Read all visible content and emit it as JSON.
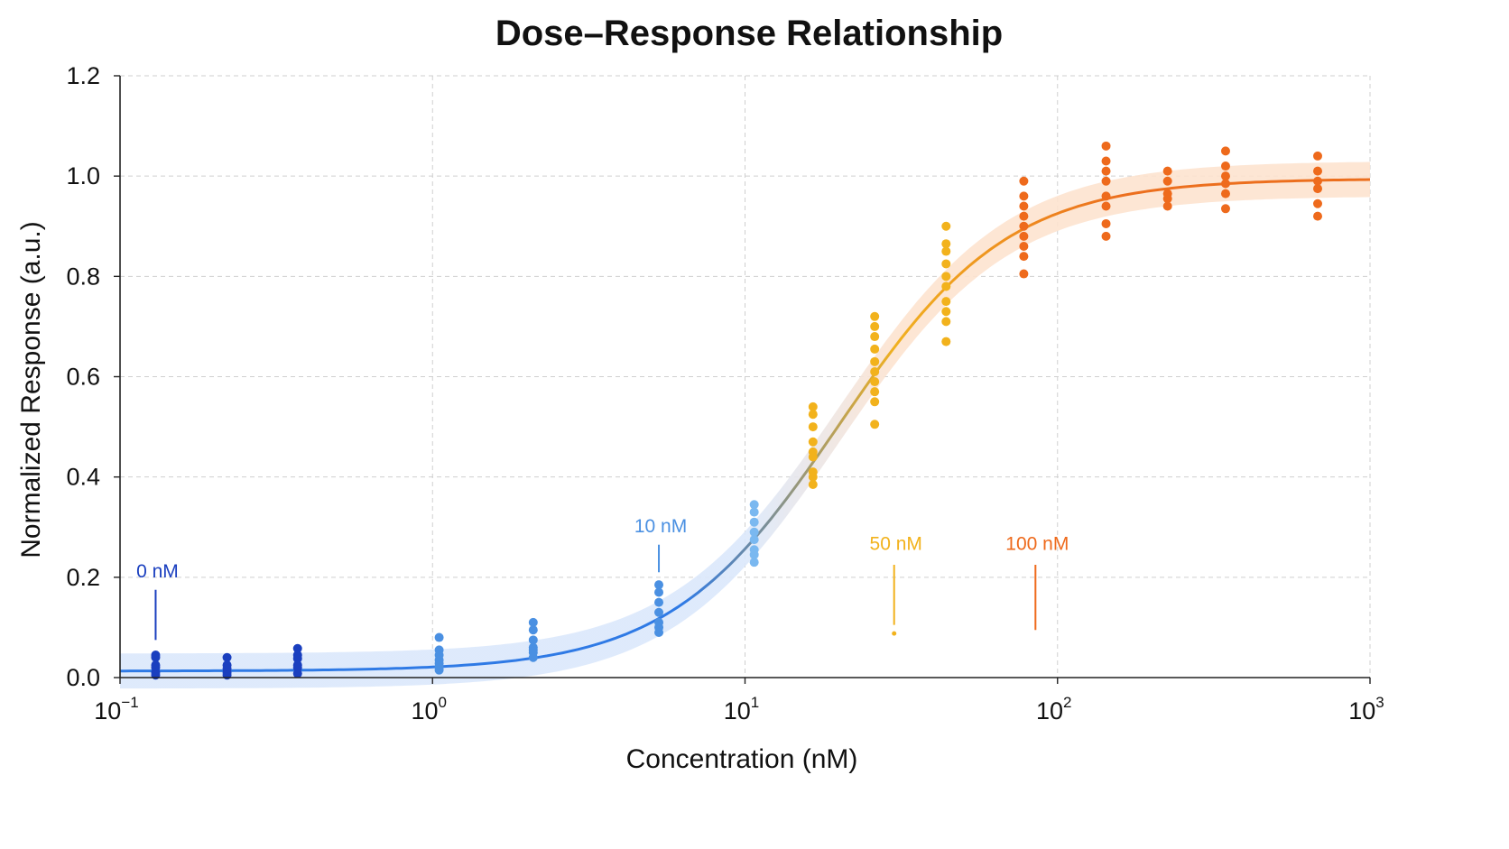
{
  "chart_data": {
    "type": "scatter",
    "title": "Dose–Response Relationship",
    "xlabel": "Concentration (nM)",
    "ylabel": "Normalized Response (a.u.)",
    "x_scale": "log",
    "xlim": [
      0.1,
      1000
    ],
    "ylim": [
      0.0,
      1.2
    ],
    "grid": true,
    "x_ticks": [
      {
        "base": "10",
        "exp": "−1",
        "value": 0.1
      },
      {
        "base": "10",
        "exp": "0",
        "value": 1
      },
      {
        "base": "10",
        "exp": "1",
        "value": 10
      },
      {
        "base": "10",
        "exp": "2",
        "value": 100
      },
      {
        "base": "10",
        "exp": "3",
        "value": 1000
      }
    ],
    "y_ticks": [
      "0.0",
      "0.2",
      "0.4",
      "0.6",
      "0.8",
      "1.0",
      "1.2"
    ],
    "fit_curve": {
      "model": "four-parameter logistic",
      "bottom": 0.013,
      "top": 0.995,
      "ec50_nM": 20,
      "hill": 1.6,
      "band_halfwidth": 0.035
    },
    "colors": {
      "dark_blue": "#1a3fbf",
      "blue": "#4a90e2",
      "light_blue": "#7ab8f0",
      "yellow": "#f2b21c",
      "orange": "#ee6a1c",
      "curve_low": "#2f7ae5",
      "curve_mid": "#f0b020",
      "curve_high": "#ec6f1e",
      "band_low": "#dbe8fb",
      "band_high": "#fde3cf"
    },
    "series": [
      {
        "x": 0.13,
        "color": "#1a3fbf",
        "y": [
          0.045,
          0.04,
          0.025,
          0.02,
          0.01,
          0.005
        ]
      },
      {
        "x": 0.22,
        "color": "#1a3fbf",
        "y": [
          0.04,
          0.025,
          0.018,
          0.01,
          0.005
        ]
      },
      {
        "x": 0.37,
        "color": "#1a3fbf",
        "y": [
          0.058,
          0.045,
          0.038,
          0.025,
          0.02,
          0.008
        ]
      },
      {
        "x": 1.05,
        "color": "#4a90e2",
        "y": [
          0.08,
          0.055,
          0.045,
          0.035,
          0.028,
          0.02,
          0.015
        ]
      },
      {
        "x": 2.1,
        "color": "#4a90e2",
        "y": [
          0.11,
          0.095,
          0.075,
          0.06,
          0.055,
          0.05,
          0.04
        ]
      },
      {
        "x": 5.3,
        "color": "#4a90e2",
        "y": [
          0.185,
          0.17,
          0.15,
          0.13,
          0.11,
          0.1,
          0.09
        ]
      },
      {
        "x": 10.7,
        "color": "#7ab8f0",
        "y": [
          0.345,
          0.33,
          0.31,
          0.29,
          0.275,
          0.255,
          0.245,
          0.23
        ]
      },
      {
        "x": 16.5,
        "color": "#f2b21c",
        "y": [
          0.54,
          0.525,
          0.5,
          0.47,
          0.45,
          0.44,
          0.41,
          0.4,
          0.385
        ]
      },
      {
        "x": 26,
        "color": "#f2b21c",
        "y": [
          0.72,
          0.7,
          0.68,
          0.655,
          0.63,
          0.61,
          0.59,
          0.57,
          0.55,
          0.505
        ]
      },
      {
        "x": 44,
        "color": "#f2b21c",
        "y": [
          0.9,
          0.865,
          0.85,
          0.825,
          0.8,
          0.78,
          0.75,
          0.73,
          0.71,
          0.67
        ]
      },
      {
        "x": 78,
        "color": "#ee6a1c",
        "y": [
          0.99,
          0.96,
          0.94,
          0.92,
          0.9,
          0.88,
          0.86,
          0.84,
          0.805
        ]
      },
      {
        "x": 143,
        "color": "#ee6a1c",
        "y": [
          1.06,
          1.03,
          1.01,
          0.99,
          0.96,
          0.94,
          0.905,
          0.88
        ]
      },
      {
        "x": 225,
        "color": "#ee6a1c",
        "y": [
          1.01,
          0.99,
          0.965,
          0.955,
          0.94
        ]
      },
      {
        "x": 345,
        "color": "#ee6a1c",
        "y": [
          1.05,
          1.02,
          1.0,
          0.985,
          0.965,
          0.935
        ]
      },
      {
        "x": 680,
        "color": "#ee6a1c",
        "y": [
          1.04,
          1.01,
          0.99,
          0.975,
          0.945,
          0.92
        ]
      }
    ],
    "annotations": [
      {
        "text": "0 nM",
        "x": 0.13,
        "y_text": 0.2,
        "line": [
          0.175,
          0.075
        ],
        "color": "#1a3fbf"
      },
      {
        "text": "10 nM",
        "x": 5.3,
        "y_text": 0.29,
        "line": [
          0.265,
          0.21
        ],
        "color": "#4a90e2"
      },
      {
        "text": "50 nM",
        "x": 30,
        "y_text": 0.255,
        "line": [
          0.225,
          0.105
        ],
        "color": "#f2b21c",
        "dot": 0.088
      },
      {
        "text": "100 nM",
        "x": 85,
        "y_text": 0.255,
        "line": [
          0.225,
          0.095
        ],
        "color": "#ee6a1c"
      }
    ]
  }
}
